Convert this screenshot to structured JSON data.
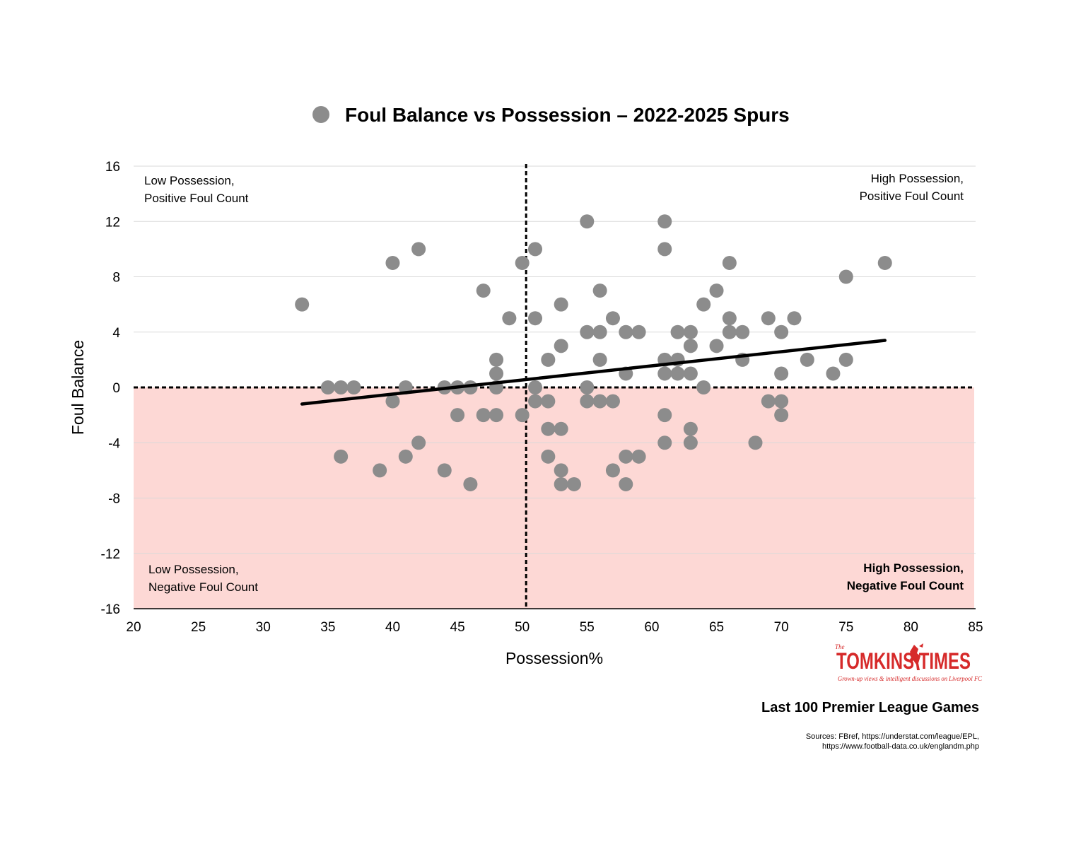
{
  "chart_data": {
    "type": "scatter",
    "title": "Foul Balance vs Possession – 2022-2025 Spurs",
    "xlabel": "Possession%",
    "ylabel": "Foul Balance",
    "xlim": [
      20,
      85
    ],
    "ylim": [
      -16,
      16
    ],
    "xticks": [
      "20",
      "25",
      "30",
      "35",
      "40",
      "45",
      "50",
      "55",
      "60",
      "65",
      "70",
      "75",
      "80",
      "85"
    ],
    "yticks": [
      "16",
      "12",
      "8",
      "4",
      "0",
      "-4",
      "-8",
      "-12",
      "-16"
    ],
    "grid": "horizontal",
    "legend": "top-center",
    "marker_color": "#8c8c8c",
    "negative_region_color": "#fdd8d5",
    "trendline": {
      "x": [
        33,
        78
      ],
      "y": [
        -1.2,
        3.4
      ],
      "color": "#000000"
    },
    "reference_lines": {
      "x": 50.3,
      "y": 0
    },
    "quadrant_labels": {
      "top_left": [
        "Low Possession,",
        "Positive Foul Count"
      ],
      "top_right": [
        "High Possession,",
        "Positive Foul Count"
      ],
      "bottom_left": [
        "Low Possession,",
        "Negative Foul Count"
      ],
      "bottom_right": [
        "High Possession,",
        "Negative Foul Count"
      ]
    },
    "points": [
      [
        33,
        6
      ],
      [
        35,
        0
      ],
      [
        36,
        0
      ],
      [
        36,
        -5
      ],
      [
        37,
        0
      ],
      [
        39,
        -6
      ],
      [
        40,
        9
      ],
      [
        40,
        -1
      ],
      [
        41,
        0
      ],
      [
        41,
        -5
      ],
      [
        42,
        10
      ],
      [
        42,
        -4
      ],
      [
        44,
        0
      ],
      [
        44,
        -6
      ],
      [
        45,
        0
      ],
      [
        45,
        -2
      ],
      [
        46,
        0
      ],
      [
        46,
        -7
      ],
      [
        47,
        7
      ],
      [
        47,
        -2
      ],
      [
        48,
        2
      ],
      [
        48,
        1
      ],
      [
        48,
        0
      ],
      [
        48,
        -2
      ],
      [
        49,
        5
      ],
      [
        50,
        9
      ],
      [
        50,
        -2
      ],
      [
        51,
        10
      ],
      [
        51,
        5
      ],
      [
        51,
        0
      ],
      [
        51,
        -1
      ],
      [
        52,
        2
      ],
      [
        52,
        -1
      ],
      [
        52,
        -3
      ],
      [
        52,
        -5
      ],
      [
        53,
        6
      ],
      [
        53,
        3
      ],
      [
        53,
        -3
      ],
      [
        53,
        -6
      ],
      [
        53,
        -7
      ],
      [
        54,
        -7
      ],
      [
        55,
        12
      ],
      [
        55,
        4
      ],
      [
        55,
        0
      ],
      [
        55,
        -1
      ],
      [
        56,
        7
      ],
      [
        56,
        4
      ],
      [
        56,
        2
      ],
      [
        56,
        -1
      ],
      [
        57,
        5
      ],
      [
        57,
        -1
      ],
      [
        57,
        -6
      ],
      [
        58,
        4
      ],
      [
        58,
        1
      ],
      [
        58,
        -5
      ],
      [
        58,
        -7
      ],
      [
        59,
        4
      ],
      [
        59,
        -5
      ],
      [
        61,
        12
      ],
      [
        61,
        10
      ],
      [
        61,
        2
      ],
      [
        61,
        1
      ],
      [
        61,
        -2
      ],
      [
        61,
        -4
      ],
      [
        62,
        4
      ],
      [
        62,
        2
      ],
      [
        62,
        1
      ],
      [
        63,
        4
      ],
      [
        63,
        3
      ],
      [
        63,
        1
      ],
      [
        63,
        -3
      ],
      [
        63,
        -4
      ],
      [
        64,
        6
      ],
      [
        64,
        0
      ],
      [
        65,
        7
      ],
      [
        65,
        3
      ],
      [
        66,
        9
      ],
      [
        66,
        5
      ],
      [
        66,
        4
      ],
      [
        67,
        4
      ],
      [
        67,
        2
      ],
      [
        68,
        -4
      ],
      [
        69,
        5
      ],
      [
        69,
        -1
      ],
      [
        70,
        4
      ],
      [
        70,
        1
      ],
      [
        70,
        -1
      ],
      [
        70,
        -2
      ],
      [
        71,
        5
      ],
      [
        72,
        2
      ],
      [
        74,
        1
      ],
      [
        75,
        8
      ],
      [
        75,
        2
      ],
      [
        78,
        9
      ]
    ]
  },
  "footer": {
    "subtitle": "Last 100 Premier League Games",
    "sources_line1": "Sources: FBref, https://understat.com/league/EPL,",
    "sources_line2": "https://www.football-data.co.uk/englandm.php"
  },
  "logo": {
    "the": "The",
    "name": "TOMKINS TIMES",
    "tagline": "Grown-up views & intelligent discussions on Liverpool FC",
    "color": "#d62a2a"
  }
}
